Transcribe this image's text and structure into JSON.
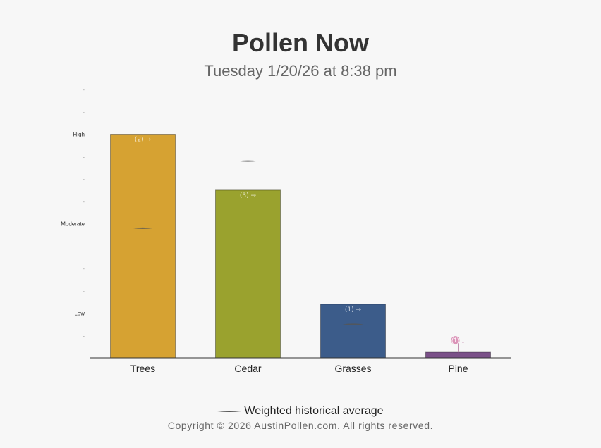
{
  "title": "Pollen Now",
  "subtitle": "Tuesday 1/20/26 at 8:38 pm",
  "legend_label": "Weighted historical average",
  "copyright": "Copyright © 2026 AustinPollen.com.  All rights reserved.",
  "chart_data": {
    "type": "bar",
    "title": "Pollen Now",
    "subtitle": "Tuesday 1/20/26 at 8:38 pm",
    "categories": [
      "Trees",
      "Cedar",
      "Grasses",
      "Pine"
    ],
    "values": [
      10,
      7.5,
      2.4,
      0.25
    ],
    "historical_average": [
      5.8,
      8.8,
      1.5,
      null
    ],
    "bar_labels": [
      "(2) →",
      "(3) →",
      "(1) →",
      "(1)"
    ],
    "colors": [
      "#d6a232",
      "#9aa22e",
      "#3c5c8a",
      "#7a5088"
    ],
    "average_color": "#555555",
    "y_range": [
      0,
      12
    ],
    "y_ticks": [
      {
        "value": 1,
        "label": "-"
      },
      {
        "value": 2,
        "label": "Low"
      },
      {
        "value": 3,
        "label": "-"
      },
      {
        "value": 4,
        "label": "-"
      },
      {
        "value": 5,
        "label": "-"
      },
      {
        "value": 6,
        "label": "Moderate"
      },
      {
        "value": 7,
        "label": "-"
      },
      {
        "value": 8,
        "label": "-"
      },
      {
        "value": 9,
        "label": "-"
      },
      {
        "value": 10,
        "label": "High"
      },
      {
        "value": 11,
        "label": "-"
      },
      {
        "value": 12,
        "label": "-"
      }
    ],
    "legend": [
      "Weighted historical average"
    ],
    "legend_position": "bottom-center",
    "grid": false
  }
}
